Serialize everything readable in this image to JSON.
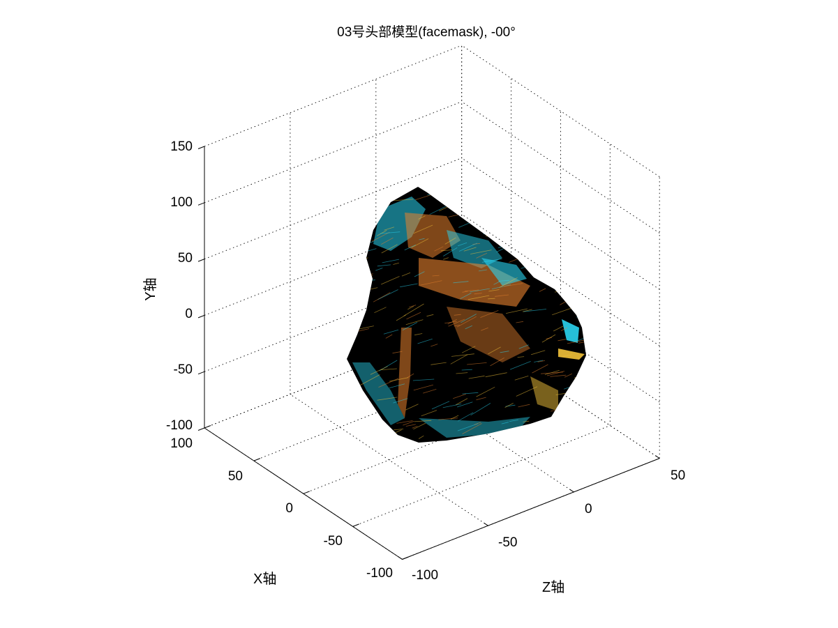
{
  "figure": {
    "background": "#ffffff"
  },
  "chart_data": {
    "type": "surface3d",
    "title": "03号头部模型(facemask), -00°",
    "xlabel": "X轴",
    "ylabel": "Y轴",
    "zlabel": "Z轴",
    "xlim": [
      -100,
      100
    ],
    "ylim": [
      -100,
      150
    ],
    "zlim": [
      -100,
      50
    ],
    "x_ticks": [
      {
        "value": 100,
        "label": "100"
      },
      {
        "value": 50,
        "label": "50"
      },
      {
        "value": 0,
        "label": "0"
      },
      {
        "value": -50,
        "label": "-50"
      },
      {
        "value": -100,
        "label": "-100"
      }
    ],
    "y_ticks": [
      {
        "value": 150,
        "label": "150"
      },
      {
        "value": 100,
        "label": "100"
      },
      {
        "value": 50,
        "label": "50"
      },
      {
        "value": 0,
        "label": "0"
      },
      {
        "value": -50,
        "label": "-50"
      },
      {
        "value": -100,
        "label": "-100"
      }
    ],
    "z_ticks": [
      {
        "value": -100,
        "label": "-100"
      },
      {
        "value": -50,
        "label": "-50"
      },
      {
        "value": 0,
        "label": "0"
      },
      {
        "value": 50,
        "label": "50"
      }
    ],
    "grid": true,
    "surface_colors": {
      "edge": "#000000",
      "cyan": "#2ad4f0",
      "orange": "#e8822e",
      "yellow": "#f2c23a"
    }
  }
}
